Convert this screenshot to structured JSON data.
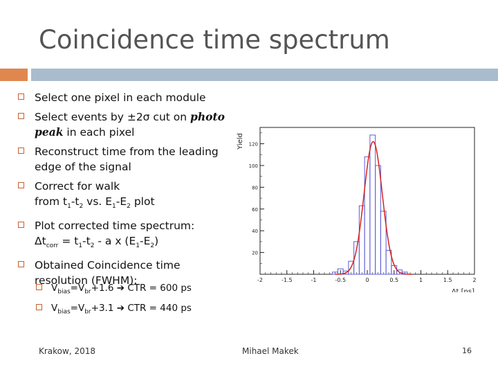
{
  "slide": {
    "title": "Coincidence time spectrum",
    "bullets": {
      "b1": "Select one pixel in each module",
      "b2_pre": "Select events by ±2σ cut on ",
      "b2_em": "photo",
      "b2_line2_em": "peak",
      "b2_post": " in each pixel",
      "b3_line1": "Reconstruct time from the leading",
      "b3_line2": "edge of the signal",
      "b4_line1": "Correct for walk",
      "b4_line2_a": "from t",
      "b4_sub1": "1",
      "b4_line2_b": "-t",
      "b4_sub2": "2",
      "b4_line2_c": " vs. E",
      "b4_sub3": "1",
      "b4_line2_d": "-E",
      "b4_sub4": "2",
      "b4_line2_e": " plot",
      "b5_line1": "Plot corrected time spectrum:",
      "b5_a": "Δt",
      "b5_sub1": "corr",
      "b5_b": " = t",
      "b5_sub2": "1",
      "b5_c": "-t",
      "b5_sub3": "2",
      "b5_d": " - a x (E",
      "b5_sub4": "1",
      "b5_e": "-E",
      "b5_sub5": "2",
      "b5_f": ")",
      "b6_line1": "Obtained Coincidence time",
      "b6_line2": "resolution (FWHM):"
    },
    "sub_bullets": [
      {
        "v": "V",
        "sub1": "bias",
        "mid": "=V",
        "sub2": "br",
        "tail": "+1.6 ➔ CTR = 600 ps"
      },
      {
        "v": "V",
        "sub1": "bias",
        "mid": "=V",
        "sub2": "br",
        "tail": "+3.1 ➔ CTR = 440 ps"
      }
    ],
    "footer": {
      "left": "Krakow, 2018",
      "center": "Mihael Makek",
      "page": "16"
    },
    "colors": {
      "title": "#555555",
      "accent_orange": "#e0874f",
      "accent_blue": "#a9bccd",
      "histogram": "#5b5bd6",
      "fit": "#d42020"
    }
  },
  "chart_data": {
    "type": "bar",
    "ylabel": "Yield",
    "xlabel": "Δt [ns]",
    "xlim": [
      -2,
      2
    ],
    "ylim": [
      0,
      135
    ],
    "xticks": [
      "-2",
      "-1.5",
      "-1",
      "-0.5",
      "0",
      "0.5",
      "1",
      "1.5",
      "2"
    ],
    "yticks": [
      "20",
      "40",
      "60",
      "80",
      "100",
      "120"
    ],
    "bin_width": 0.1,
    "bins": [
      {
        "x": -0.6,
        "y": 2
      },
      {
        "x": -0.5,
        "y": 5
      },
      {
        "x": -0.4,
        "y": 3
      },
      {
        "x": -0.3,
        "y": 12
      },
      {
        "x": -0.2,
        "y": 30
      },
      {
        "x": -0.1,
        "y": 63
      },
      {
        "x": 0.0,
        "y": 108
      },
      {
        "x": 0.1,
        "y": 128
      },
      {
        "x": 0.2,
        "y": 100
      },
      {
        "x": 0.3,
        "y": 58
      },
      {
        "x": 0.4,
        "y": 22
      },
      {
        "x": 0.5,
        "y": 8
      },
      {
        "x": 0.6,
        "y": 4
      },
      {
        "x": 0.7,
        "y": 2
      }
    ],
    "fit": {
      "type": "gaussian",
      "amplitude": 122,
      "mean": 0.11,
      "sigma": 0.17
    }
  }
}
